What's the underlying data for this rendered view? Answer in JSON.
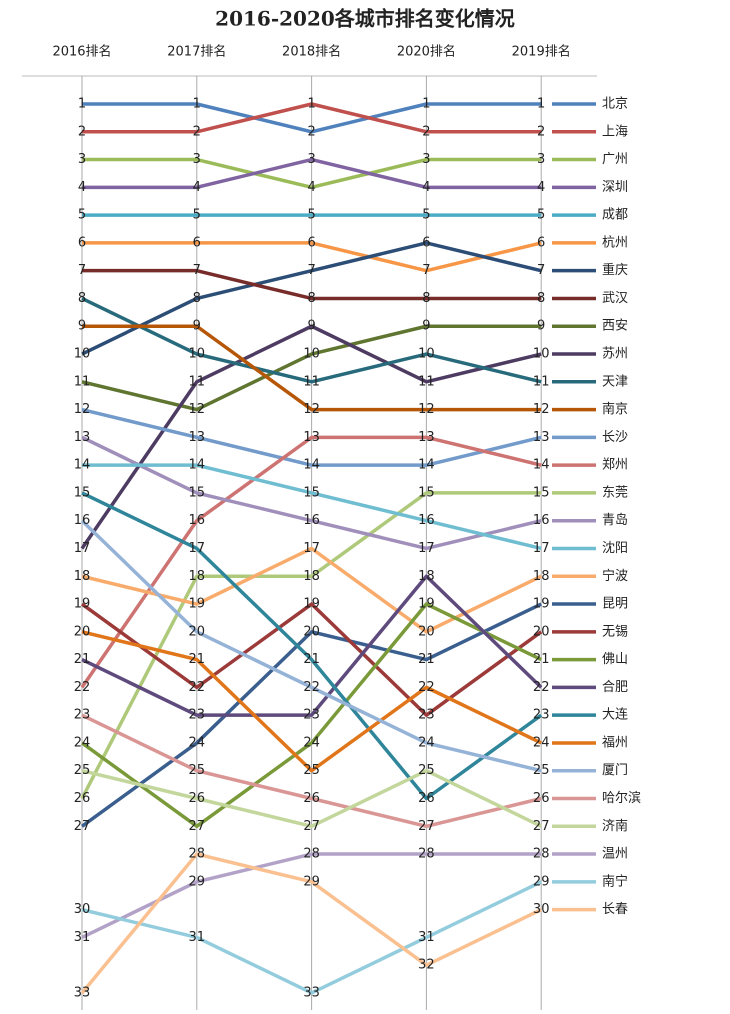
{
  "chart_data": {
    "type": "bump",
    "title": "2016-2020各城市排名变化情况",
    "columns": [
      "2016排名",
      "2017排名",
      "2018排名",
      "2020排名",
      "2019排名"
    ],
    "series": [
      {
        "name": "北京",
        "color": "#4f81bd",
        "values": [
          1,
          1,
          2,
          1,
          1
        ]
      },
      {
        "name": "上海",
        "color": "#c0504d",
        "values": [
          2,
          2,
          1,
          2,
          2
        ]
      },
      {
        "name": "广州",
        "color": "#9bbb59",
        "values": [
          3,
          3,
          4,
          3,
          3
        ]
      },
      {
        "name": "深圳",
        "color": "#8064a2",
        "values": [
          4,
          4,
          3,
          4,
          4
        ]
      },
      {
        "name": "成都",
        "color": "#4bacc6",
        "values": [
          5,
          5,
          5,
          5,
          5
        ]
      },
      {
        "name": "杭州",
        "color": "#f79646",
        "values": [
          6,
          6,
          6,
          7,
          6
        ]
      },
      {
        "name": "重庆",
        "color": "#2c4d75",
        "values": [
          10,
          8,
          7,
          6,
          7
        ]
      },
      {
        "name": "武汉",
        "color": "#772c2a",
        "values": [
          7,
          7,
          8,
          8,
          8
        ]
      },
      {
        "name": "西安",
        "color": "#5f7530",
        "values": [
          11,
          12,
          10,
          9,
          9
        ]
      },
      {
        "name": "苏州",
        "color": "#4d3b62",
        "values": [
          17,
          11,
          9,
          11,
          10
        ]
      },
      {
        "name": "天津",
        "color": "#276a7c",
        "values": [
          8,
          10,
          11,
          10,
          11
        ]
      },
      {
        "name": "南京",
        "color": "#b65708",
        "values": [
          9,
          9,
          12,
          12,
          12
        ]
      },
      {
        "name": "长沙",
        "color": "#729aca",
        "values": [
          12,
          13,
          14,
          14,
          13
        ]
      },
      {
        "name": "郑州",
        "color": "#cd7371",
        "values": [
          22,
          16,
          13,
          13,
          14
        ]
      },
      {
        "name": "东莞",
        "color": "#afc97a",
        "values": [
          26,
          18,
          18,
          15,
          15
        ]
      },
      {
        "name": "青岛",
        "color": "#a08fba",
        "values": [
          13,
          15,
          16,
          17,
          16
        ]
      },
      {
        "name": "沈阳",
        "color": "#6fbdd1",
        "values": [
          14,
          14,
          15,
          16,
          17
        ]
      },
      {
        "name": "宁波",
        "color": "#f9ab6b",
        "values": [
          18,
          19,
          17,
          20,
          18
        ]
      },
      {
        "name": "昆明",
        "color": "#3a5f8f",
        "values": [
          27,
          24,
          20,
          21,
          19
        ]
      },
      {
        "name": "无锡",
        "color": "#9b3a38",
        "values": [
          19,
          22,
          19,
          23,
          20
        ]
      },
      {
        "name": "佛山",
        "color": "#7a9a3a",
        "values": [
          24,
          27,
          24,
          19,
          21
        ]
      },
      {
        "name": "合肥",
        "color": "#5e4a7c",
        "values": [
          21,
          23,
          23,
          18,
          22
        ]
      },
      {
        "name": "大连",
        "color": "#2f8599",
        "values": [
          15,
          17,
          21,
          26,
          23
        ]
      },
      {
        "name": "福州",
        "color": "#e0751a",
        "values": [
          20,
          21,
          25,
          22,
          24
        ]
      },
      {
        "name": "厦门",
        "color": "#95b3d7",
        "values": [
          16,
          20,
          22,
          24,
          25
        ]
      },
      {
        "name": "哈尔滨",
        "color": "#d99694",
        "values": [
          23,
          25,
          26,
          27,
          26
        ]
      },
      {
        "name": "济南",
        "color": "#c3d69b",
        "values": [
          25,
          26,
          27,
          25,
          27
        ]
      },
      {
        "name": "温州",
        "color": "#b3a2c7",
        "values": [
          31,
          29,
          28,
          28,
          28
        ]
      },
      {
        "name": "南宁",
        "color": "#93cddd",
        "values": [
          30,
          31,
          33,
          31,
          29
        ]
      },
      {
        "name": "长春",
        "color": "#fac090",
        "values": [
          33,
          28,
          29,
          32,
          30
        ]
      }
    ]
  }
}
